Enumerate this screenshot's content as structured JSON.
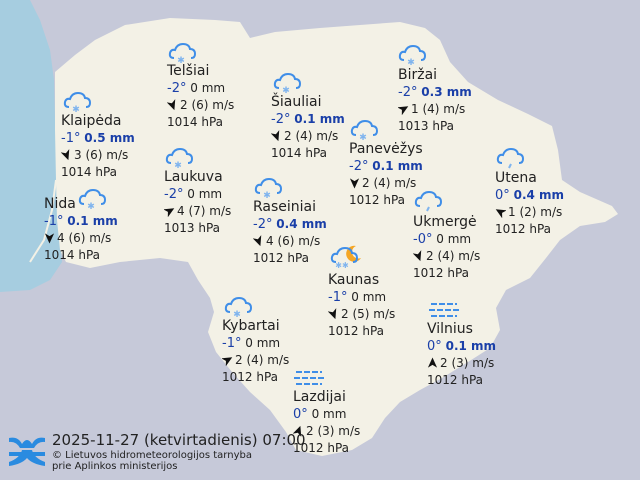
{
  "colors": {
    "land": "#f3f1e6",
    "sea": "#a6cde0",
    "neighbors": "#c6c9d9",
    "temp": "#1a3fa8",
    "icon": "#3f8ee8"
  },
  "stations": [
    {
      "name": "Telšiai",
      "temp": "-2°",
      "precip": "0 mm",
      "wet": false,
      "wind": "2 (6) m/s",
      "wind_dir": 160,
      "pressure": "1014 hPa",
      "icon": "cloud-snow-icon"
    },
    {
      "name": "Klaipėda",
      "temp": "-1°",
      "precip": "0.5 mm",
      "wet": true,
      "wind": "3 (6) m/s",
      "wind_dir": 160,
      "pressure": "1014 hPa",
      "icon": "cloud-snow-icon"
    },
    {
      "name": "Šiauliai",
      "temp": "-2°",
      "precip": "0.1 mm",
      "wet": true,
      "wind": "2 (4) m/s",
      "wind_dir": 160,
      "pressure": "1014 hPa",
      "icon": "cloud-snow-icon"
    },
    {
      "name": "Biržai",
      "temp": "-2°",
      "precip": "0.3 mm",
      "wet": true,
      "wind": "1 (4) m/s",
      "wind_dir": 60,
      "pressure": "1013 hPa",
      "icon": "cloud-snow-icon"
    },
    {
      "name": "Panevėžys",
      "temp": "-2°",
      "precip": "0.1 mm",
      "wet": true,
      "wind": "2 (4) m/s",
      "wind_dir": 180,
      "pressure": "1012 hPa",
      "icon": "cloud-snow-icon"
    },
    {
      "name": "Utena",
      "temp": "0°",
      "precip": "0.4 mm",
      "wet": true,
      "wind": "1 (2) m/s",
      "wind_dir": 300,
      "pressure": "1012 hPa",
      "icon": "cloud-rain-icon"
    },
    {
      "name": "Laukuva",
      "temp": "-2°",
      "precip": "0 mm",
      "wet": false,
      "wind": "4 (7) m/s",
      "wind_dir": 60,
      "pressure": "1013 hPa",
      "icon": "cloud-snow-icon"
    },
    {
      "name": "Raseiniai",
      "temp": "-2°",
      "precip": "0.4 mm",
      "wet": true,
      "wind": "4 (6) m/s",
      "wind_dir": 160,
      "pressure": "1012 hPa",
      "icon": "cloud-snow-icon"
    },
    {
      "name": "Nida",
      "temp": "-1°",
      "precip": "0.1 mm",
      "wet": true,
      "wind": "4 (6) m/s",
      "wind_dir": 180,
      "pressure": "1014 hPa",
      "icon": "cloud-snow-icon"
    },
    {
      "name": "Ukmergė",
      "temp": "-0°",
      "precip": "0 mm",
      "wet": false,
      "wind": "2 (4) m/s",
      "wind_dir": 160,
      "pressure": "1012 hPa",
      "icon": "cloud-rain-icon"
    },
    {
      "name": "Kaunas",
      "temp": "-1°",
      "precip": "0 mm",
      "wet": false,
      "wind": "2 (5) m/s",
      "wind_dir": 160,
      "pressure": "1012 hPa",
      "icon": "moon-cloud-snow-icon"
    },
    {
      "name": "Vilnius",
      "temp": "0°",
      "precip": "0.1 mm",
      "wet": true,
      "wind": "2 (3) m/s",
      "wind_dir": 0,
      "pressure": "1012 hPa",
      "icon": "fog-icon"
    },
    {
      "name": "Kybartai",
      "temp": "-1°",
      "precip": "0 mm",
      "wet": false,
      "wind": "2 (4) m/s",
      "wind_dir": 60,
      "pressure": "1012 hPa",
      "icon": "cloud-snow-icon"
    },
    {
      "name": "Lazdijai",
      "temp": "0°",
      "precip": "0 mm",
      "wet": false,
      "wind": "2 (3) m/s",
      "wind_dir": 20,
      "pressure": "1012 hPa",
      "icon": "fog-icon"
    }
  ],
  "footer": {
    "datetime": "2025-11-27 (ketvirtadienis) 07:00",
    "copyright_line1": "© Lietuvos hidrometeorologijos tarnyba",
    "copyright_line2": "prie Aplinkos ministerijos"
  }
}
